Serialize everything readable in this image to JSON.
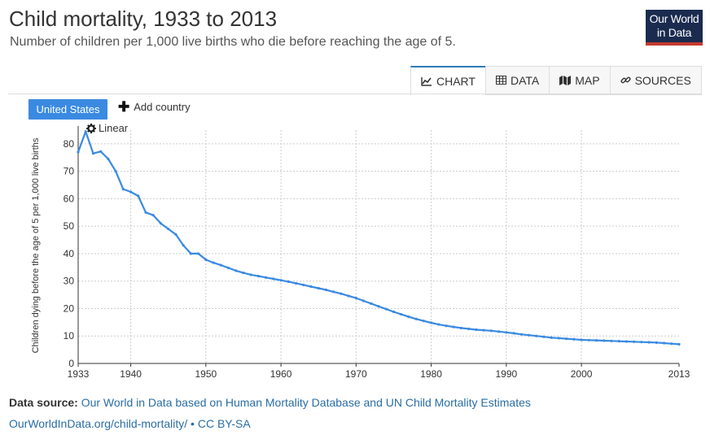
{
  "header": {
    "title": "Child mortality, 1933 to 2013",
    "subtitle": "Number of children per 1,000 live births who die before reaching the age of 5."
  },
  "logo": {
    "line1": "Our World",
    "line2": "in Data"
  },
  "tabs": [
    {
      "label": "CHART",
      "icon": "line-chart-icon",
      "active": true
    },
    {
      "label": "DATA",
      "icon": "table-icon",
      "active": false
    },
    {
      "label": "MAP",
      "icon": "map-icon",
      "active": false
    },
    {
      "label": "SOURCES",
      "icon": "link-icon",
      "active": false
    }
  ],
  "controls": {
    "entity": "United States",
    "add_country": "Add country",
    "scale": "Linear"
  },
  "footer": {
    "source_label": "Data source:",
    "source_text": "Our World in Data based on Human Mortality Database and UN Child Mortality Estimates",
    "license_link": "OurWorldInData.org/child-mortality/",
    "license_text": " • CC BY-SA"
  },
  "colors": {
    "series": "#3a8ae1",
    "grid": "#cccccc",
    "axis": "#333333",
    "logo_bg": "#1a2b4f",
    "logo_accent": "#c43a31"
  },
  "chart_data": {
    "type": "line",
    "title": "Child mortality, 1933 to 2013",
    "xlabel": "",
    "ylabel": "Children dying before the age of 5 per 1,000 live births",
    "xlim": [
      1933,
      2013
    ],
    "ylim": [
      0,
      85
    ],
    "x_ticks": [
      1933,
      1940,
      1950,
      1960,
      1970,
      1980,
      1990,
      2000,
      2013
    ],
    "y_ticks": [
      0,
      10,
      20,
      30,
      40,
      50,
      60,
      70,
      80
    ],
    "grid": true,
    "series": [
      {
        "name": "United States",
        "color": "#3a8ae1",
        "x": [
          1933,
          1934,
          1935,
          1936,
          1937,
          1938,
          1939,
          1940,
          1941,
          1942,
          1943,
          1944,
          1945,
          1946,
          1947,
          1948,
          1949,
          1950,
          1951,
          1952,
          1953,
          1954,
          1955,
          1956,
          1957,
          1958,
          1959,
          1960,
          1961,
          1962,
          1963,
          1964,
          1965,
          1966,
          1967,
          1968,
          1969,
          1970,
          1971,
          1972,
          1973,
          1974,
          1975,
          1976,
          1977,
          1978,
          1979,
          1980,
          1981,
          1982,
          1983,
          1984,
          1985,
          1986,
          1987,
          1988,
          1989,
          1990,
          1991,
          1992,
          1993,
          1994,
          1995,
          1996,
          1997,
          1998,
          1999,
          2000,
          2001,
          2002,
          2003,
          2004,
          2005,
          2006,
          2007,
          2008,
          2009,
          2010,
          2011,
          2012,
          2013
        ],
        "y": [
          77.0,
          84.5,
          76.5,
          77.2,
          74.5,
          70.0,
          63.5,
          62.5,
          61.0,
          55.0,
          54.0,
          51.0,
          49.0,
          47.0,
          43.0,
          40.0,
          40.0,
          37.8,
          36.7,
          35.8,
          34.8,
          33.8,
          33.0,
          32.3,
          31.8,
          31.3,
          30.8,
          30.3,
          29.8,
          29.2,
          28.6,
          28.0,
          27.4,
          26.8,
          26.1,
          25.4,
          24.6,
          23.8,
          22.8,
          21.8,
          20.8,
          19.8,
          18.8,
          17.9,
          17.0,
          16.2,
          15.5,
          14.8,
          14.2,
          13.7,
          13.3,
          12.9,
          12.6,
          12.3,
          12.1,
          11.9,
          11.6,
          11.3,
          11.0,
          10.6,
          10.3,
          10.0,
          9.7,
          9.4,
          9.2,
          9.0,
          8.8,
          8.6,
          8.5,
          8.4,
          8.3,
          8.2,
          8.1,
          8.0,
          7.9,
          7.8,
          7.7,
          7.6,
          7.4,
          7.2,
          7.0
        ]
      }
    ]
  }
}
